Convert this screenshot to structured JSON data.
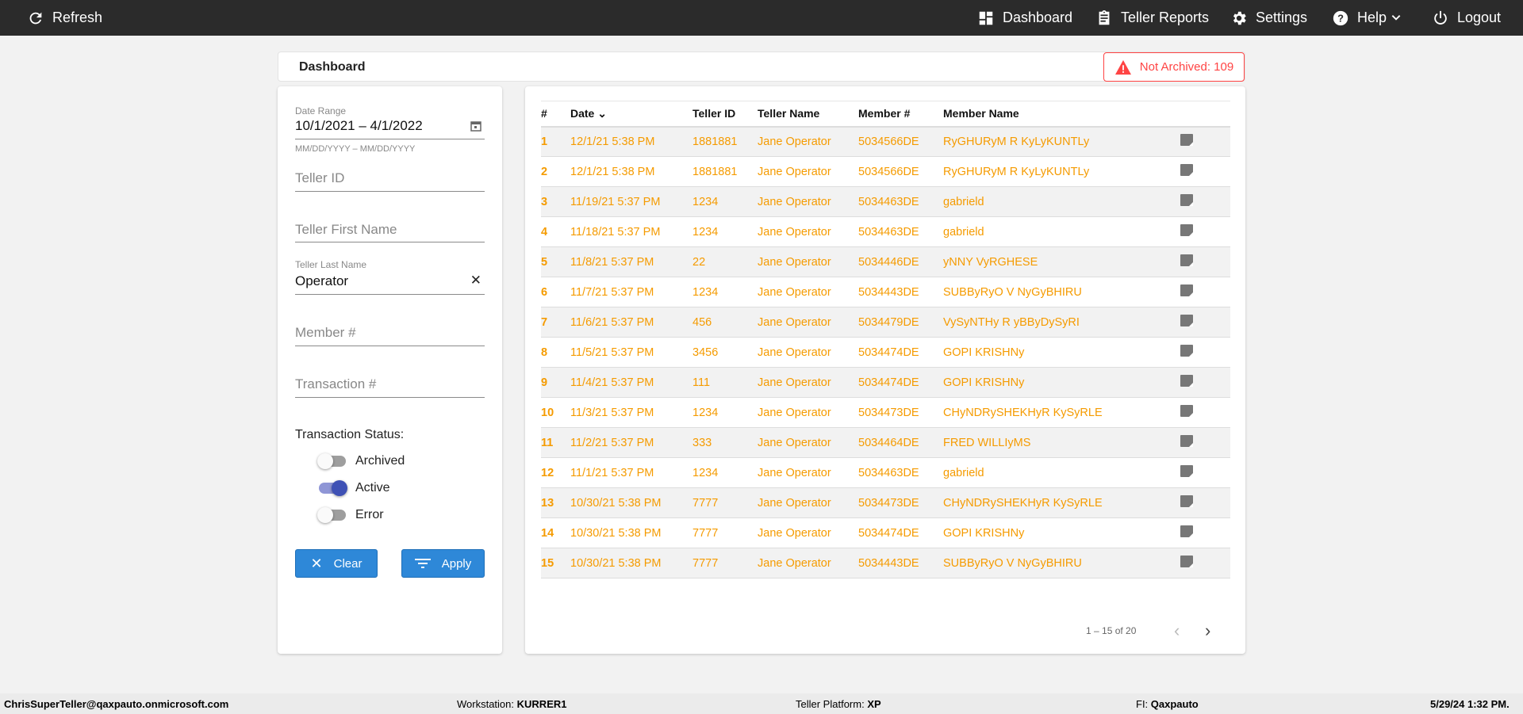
{
  "topbar": {
    "refresh": "Refresh",
    "dashboard": "Dashboard",
    "teller_reports": "Teller Reports",
    "settings": "Settings",
    "help": "Help",
    "logout": "Logout"
  },
  "header": {
    "title": "Dashboard",
    "badge": "Not Archived: 109",
    "badge_color": "#ff4444"
  },
  "filters": {
    "date_range_label": "Date Range",
    "date_range_value": "10/1/2021 – 4/1/2022",
    "date_hint": "MM/DD/YYYY – MM/DD/YYYY",
    "teller_id_placeholder": "Teller ID",
    "teller_first_placeholder": "Teller First Name",
    "teller_last_label": "Teller Last Name",
    "teller_last_value": "Operator",
    "member_placeholder": "Member #",
    "transaction_placeholder": "Transaction #",
    "status_label": "Transaction Status:",
    "statuses": [
      {
        "label": "Archived",
        "on": false
      },
      {
        "label": "Active",
        "on": true
      },
      {
        "label": "Error",
        "on": false
      }
    ],
    "clear": "Clear",
    "apply": "Apply"
  },
  "table": {
    "columns": [
      "#",
      "Date",
      "Teller ID",
      "Teller Name",
      "Member #",
      "Member Name"
    ],
    "rows": [
      [
        "1",
        "12/1/21 5:38 PM",
        "1881881",
        "Jane Operator",
        "5034566DE",
        "RyGHURyM R KyLyKUNTLy"
      ],
      [
        "2",
        "12/1/21 5:38 PM",
        "1881881",
        "Jane Operator",
        "5034566DE",
        "RyGHURyM R KyLyKUNTLy"
      ],
      [
        "3",
        "11/19/21 5:37 PM",
        "1234",
        "Jane Operator",
        "5034463DE",
        "gabrield"
      ],
      [
        "4",
        "11/18/21 5:37 PM",
        "1234",
        "Jane Operator",
        "5034463DE",
        "gabrield"
      ],
      [
        "5",
        "11/8/21 5:37 PM",
        "22",
        "Jane Operator",
        "5034446DE",
        "yNNY VyRGHESE"
      ],
      [
        "6",
        "11/7/21 5:37 PM",
        "1234",
        "Jane Operator",
        "5034443DE",
        "SUBByRyO V NyGyBHIRU"
      ],
      [
        "7",
        "11/6/21 5:37 PM",
        "456",
        "Jane Operator",
        "5034479DE",
        "VySyNTHy R yBByDySyRI"
      ],
      [
        "8",
        "11/5/21 5:37 PM",
        "3456",
        "Jane Operator",
        "5034474DE",
        "GOPI KRISHNy"
      ],
      [
        "9",
        "11/4/21 5:37 PM",
        "111",
        "Jane Operator",
        "5034474DE",
        "GOPI KRISHNy"
      ],
      [
        "10",
        "11/3/21 5:37 PM",
        "1234",
        "Jane Operator",
        "5034473DE",
        "CHyNDRySHEKHyR KySyRLE"
      ],
      [
        "11",
        "11/2/21 5:37 PM",
        "333",
        "Jane Operator",
        "5034464DE",
        "FRED WILLIyMS"
      ],
      [
        "12",
        "11/1/21 5:37 PM",
        "1234",
        "Jane Operator",
        "5034463DE",
        "gabrield"
      ],
      [
        "13",
        "10/30/21 5:38 PM",
        "7777",
        "Jane Operator",
        "5034473DE",
        "CHyNDRySHEKHyR KySyRLE"
      ],
      [
        "14",
        "10/30/21 5:38 PM",
        "7777",
        "Jane Operator",
        "5034474DE",
        "GOPI KRISHNy"
      ],
      [
        "15",
        "10/30/21 5:38 PM",
        "7777",
        "Jane Operator",
        "5034443DE",
        "SUBByRyO V NyGyBHIRU"
      ]
    ],
    "row_color": "#f59b00",
    "pagination": "1 – 15 of 20"
  },
  "footer": {
    "user": "ChrisSuperTeller@qaxpauto.onmicrosoft.com",
    "workstation_label": "Workstation:",
    "workstation": "KURRER1",
    "platform_label": "Teller Platform:",
    "platform": "XP",
    "fi_label": "FI:",
    "fi": "Qaxpauto",
    "datetime": "5/29/24 1:32 PM."
  }
}
